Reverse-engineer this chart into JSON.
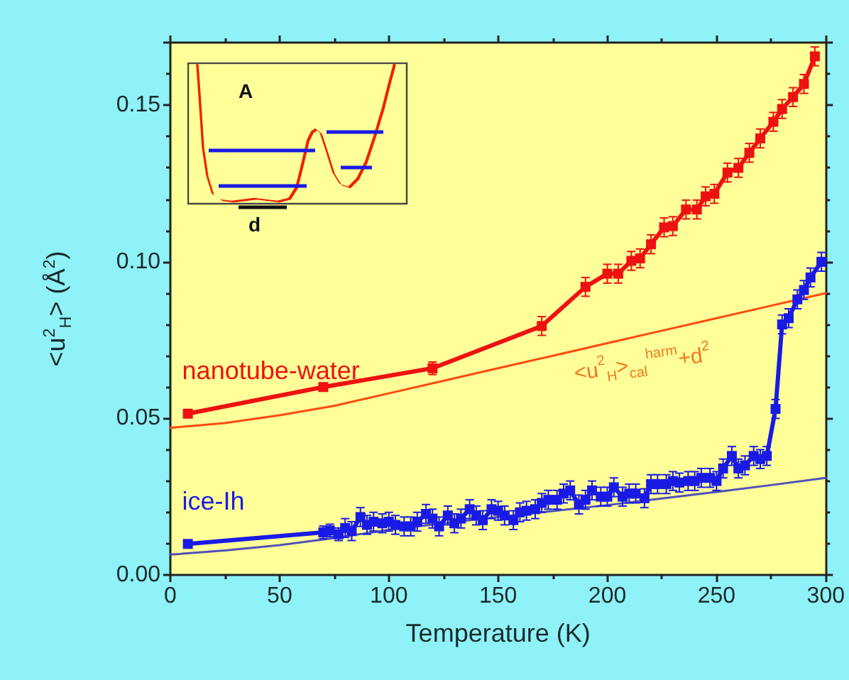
{
  "chart_data": {
    "type": "line",
    "xlabel": "Temperature (K)",
    "ylabel": "<u$^{2}$$_{H}$> (Å$^{2}$)",
    "xlim": [
      0,
      300
    ],
    "ylim": [
      0,
      0.17
    ],
    "xticks": [
      0,
      50,
      100,
      150,
      200,
      250,
      300
    ],
    "yticks": [
      {
        "value": 0,
        "label": "0.00"
      },
      {
        "value": 0.05,
        "label": "0.05"
      },
      {
        "value": 0.1,
        "label": "0.10"
      },
      {
        "value": 0.15,
        "label": "0.15"
      }
    ],
    "grid": false,
    "legend": false,
    "marker": "square",
    "line_style": "solid",
    "annotations": [
      "A",
      "d",
      {
        "text": "<u$^{2}$$_{H}$>$_{cal}$$^{harm}$+d$^{2}$",
        "x": 215,
        "y": 0.074
      }
    ],
    "series": [
      {
        "name": "nanotube-water",
        "color": "#ee1111",
        "x": [
          8,
          70,
          120,
          170,
          190,
          200,
          205,
          211,
          215,
          220,
          226,
          230,
          236,
          241,
          245,
          249,
          255,
          260,
          265,
          270,
          276,
          280,
          285,
          290,
          295
        ],
        "values": [
          0.0515,
          0.06,
          0.066,
          0.0795,
          0.092,
          0.0962,
          0.0962,
          0.1003,
          0.1011,
          0.1056,
          0.111,
          0.1114,
          0.1167,
          0.1167,
          0.1209,
          0.1217,
          0.1285,
          0.13,
          0.1348,
          0.1394,
          0.1447,
          0.1488,
          0.1526,
          0.1568,
          0.1656
        ],
        "errors": [
          0.001,
          0.001,
          0.002,
          0.003,
          0.003,
          0.003,
          0.003,
          0.003,
          0.003,
          0.003,
          0.003,
          0.003,
          0.003,
          0.003,
          0.003,
          0.003,
          0.003,
          0.003,
          0.003,
          0.003,
          0.003,
          0.003,
          0.003,
          0.003,
          0.003
        ]
      },
      {
        "name": "ice-Ih",
        "color": "#1a1ae6",
        "x": [
          8,
          70,
          73,
          77,
          80,
          83,
          87,
          90,
          93,
          97,
          100,
          103,
          107,
          110,
          113,
          117,
          120,
          123,
          127,
          130,
          133,
          137,
          140,
          143,
          147,
          150,
          153,
          157,
          160,
          163,
          167,
          170,
          173,
          177,
          180,
          183,
          187,
          190,
          193,
          197,
          200,
          203,
          207,
          210,
          213,
          217,
          220,
          223,
          227,
          230,
          233,
          237,
          240,
          243,
          247,
          250,
          253,
          257,
          260,
          263,
          267,
          270,
          273,
          277,
          280,
          283,
          287,
          290,
          293,
          298
        ],
        "values": [
          0.0099,
          0.0136,
          0.0142,
          0.013,
          0.015,
          0.014,
          0.0185,
          0.016,
          0.017,
          0.0165,
          0.017,
          0.016,
          0.0155,
          0.0155,
          0.017,
          0.0195,
          0.018,
          0.0155,
          0.019,
          0.0165,
          0.018,
          0.021,
          0.019,
          0.0175,
          0.021,
          0.0205,
          0.019,
          0.0175,
          0.02,
          0.0205,
          0.021,
          0.023,
          0.024,
          0.024,
          0.026,
          0.027,
          0.0225,
          0.024,
          0.027,
          0.025,
          0.025,
          0.028,
          0.025,
          0.026,
          0.026,
          0.0245,
          0.029,
          0.029,
          0.029,
          0.03,
          0.0295,
          0.03,
          0.03,
          0.031,
          0.031,
          0.03,
          0.034,
          0.038,
          0.034,
          0.035,
          0.038,
          0.037,
          0.038,
          0.053,
          0.08,
          0.082,
          0.088,
          0.091,
          0.095,
          0.1
        ],
        "errors": [
          0.001,
          0.002,
          0.002,
          0.002,
          0.003,
          0.003,
          0.003,
          0.003,
          0.003,
          0.003,
          0.003,
          0.003,
          0.003,
          0.003,
          0.003,
          0.003,
          0.003,
          0.003,
          0.003,
          0.003,
          0.003,
          0.003,
          0.003,
          0.003,
          0.003,
          0.003,
          0.003,
          0.003,
          0.003,
          0.003,
          0.003,
          0.003,
          0.003,
          0.003,
          0.003,
          0.003,
          0.003,
          0.003,
          0.003,
          0.003,
          0.003,
          0.003,
          0.003,
          0.003,
          0.003,
          0.003,
          0.003,
          0.003,
          0.003,
          0.003,
          0.003,
          0.003,
          0.003,
          0.003,
          0.003,
          0.003,
          0.003,
          0.003,
          0.003,
          0.003,
          0.003,
          0.003,
          0.003,
          0.003,
          0.003,
          0.003,
          0.003,
          0.003,
          0.003,
          0.003
        ]
      },
      {
        "type": "line",
        "marker": "none",
        "color": "#ff4a10",
        "x": [
          0,
          25,
          50,
          75,
          100,
          125,
          150,
          175,
          200,
          225,
          250,
          275,
          300
        ],
        "values": [
          0.047,
          0.0485,
          0.051,
          0.054,
          0.058,
          0.062,
          0.066,
          0.07,
          0.074,
          0.078,
          0.082,
          0.086,
          0.09
        ]
      },
      {
        "type": "line",
        "marker": "none",
        "color": "#5050b8",
        "x": [
          0,
          25,
          50,
          75,
          100,
          125,
          150,
          175,
          200,
          225,
          250,
          275,
          300
        ],
        "values": [
          0.0065,
          0.0078,
          0.0095,
          0.0118,
          0.0144,
          0.0165,
          0.0185,
          0.0204,
          0.0223,
          0.0244,
          0.0265,
          0.0287,
          0.031
        ]
      }
    ]
  }
}
